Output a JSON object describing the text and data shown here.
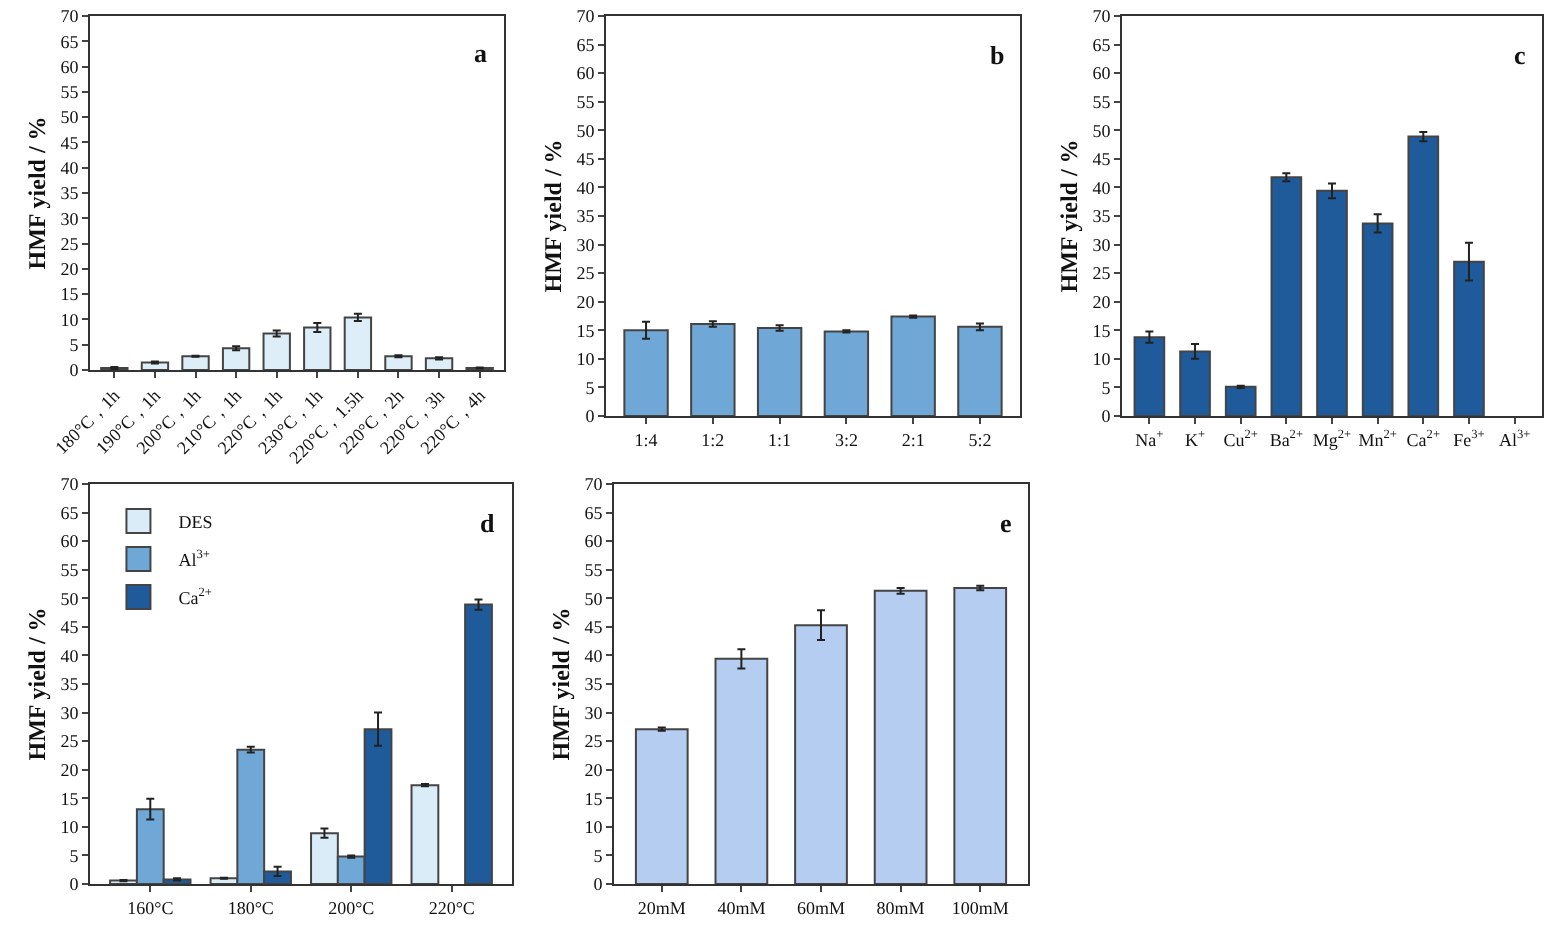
{
  "chart_data": [
    {
      "type": "bar",
      "categories": [
        "180°C，1h",
        "190°C，1h",
        "200°C，1h",
        "210°C，1h",
        "220°C，1h",
        "230°C，1h",
        "220°C，1.5h",
        "220°C，2h",
        "220°C，3h",
        "220°C，4h"
      ],
      "color": "#ddeef8",
      "values": [
        0.4,
        1.5,
        2.7,
        4.3,
        7.2,
        8.4,
        10.4,
        2.7,
        2.3,
        0.4
      ],
      "errors": [
        0.2,
        0.2,
        0.1,
        0.4,
        0.6,
        0.9,
        0.7,
        0.2,
        0.2,
        0.1
      ],
      "ylim": [
        0,
        70
      ],
      "yticks": [
        0,
        5,
        10,
        15,
        20,
        25,
        30,
        35,
        40,
        45,
        50,
        55,
        60,
        65,
        70
      ],
      "ylabel": "HMF yield / %",
      "annotations": [
        "a"
      ]
    },
    {
      "type": "bar",
      "categories": [
        "1:4",
        "1:2",
        "1:1",
        "3:2",
        "2:1",
        "5:2"
      ],
      "color": "#6fa8d6",
      "values": [
        15.0,
        16.1,
        15.4,
        14.8,
        17.4,
        15.6
      ],
      "errors": [
        1.5,
        0.5,
        0.5,
        0.2,
        0.2,
        0.6
      ],
      "ylim": [
        0,
        70
      ],
      "yticks": [
        0,
        5,
        10,
        15,
        20,
        25,
        30,
        35,
        40,
        45,
        50,
        55,
        60,
        65,
        70
      ],
      "ylabel": "HMF yield / %",
      "annotations": [
        "b"
      ]
    },
    {
      "type": "bar",
      "categories": [
        "Na$^{+}$",
        "K$^{+}$",
        "Cu$^{2+}$",
        "Ba$^{2+}$",
        "Mg$^{2+}$",
        "Mn$^{2+}$",
        "Ca$^{2+}$",
        "Fe$^{3+}$",
        "Al$^{3+}$"
      ],
      "color": "#1f5a9a",
      "values": [
        13.8,
        11.3,
        5.1,
        41.8,
        39.4,
        33.7,
        48.9,
        27.0,
        null
      ],
      "errors": [
        1.0,
        1.3,
        0.2,
        0.7,
        1.3,
        1.6,
        0.8,
        3.3,
        null
      ],
      "ylim": [
        0,
        70
      ],
      "yticks": [
        0,
        5,
        10,
        15,
        20,
        25,
        30,
        35,
        40,
        45,
        50,
        55,
        60,
        65,
        70
      ],
      "ylabel": "HMF yield / %",
      "annotations": [
        "c"
      ]
    },
    {
      "type": "bar",
      "categories": [
        "160°C",
        "180°C",
        "200°C",
        "220°C"
      ],
      "legend": "top left",
      "series": [
        {
          "name": "DES",
          "color": "#daecf7",
          "values": [
            0.6,
            1.0,
            8.9,
            17.3
          ],
          "errors": [
            0.1,
            0.1,
            0.8,
            0.2
          ]
        },
        {
          "name": "Al$^{3+}$",
          "color": "#6fa8d6",
          "values": [
            13.1,
            23.5,
            4.8,
            null
          ],
          "errors": [
            1.8,
            0.5,
            0.2,
            null
          ]
        },
        {
          "name": "Ca$^{2+}$",
          "color": "#1f5a9a",
          "values": [
            0.8,
            2.2,
            27.1,
            48.9
          ],
          "errors": [
            0.2,
            0.8,
            2.9,
            0.9
          ]
        }
      ],
      "ylim": [
        0,
        70
      ],
      "yticks": [
        0,
        5,
        10,
        15,
        20,
        25,
        30,
        35,
        40,
        45,
        50,
        55,
        60,
        65,
        70
      ],
      "ylabel": "HMF yield / %",
      "annotations": [
        "d"
      ]
    },
    {
      "type": "bar",
      "categories": [
        "20mM",
        "40mM",
        "60mM",
        "80mM",
        "100mM"
      ],
      "color": "#b4cdf0",
      "values": [
        27.1,
        39.4,
        45.3,
        51.3,
        51.8
      ],
      "errors": [
        0.3,
        1.7,
        2.6,
        0.5,
        0.4
      ],
      "ylim": [
        0,
        70
      ],
      "yticks": [
        0,
        5,
        10,
        15,
        20,
        25,
        30,
        35,
        40,
        45,
        50,
        55,
        60,
        65,
        70
      ],
      "ylabel": "HMF yield / %",
      "annotations": [
        "e"
      ]
    }
  ]
}
